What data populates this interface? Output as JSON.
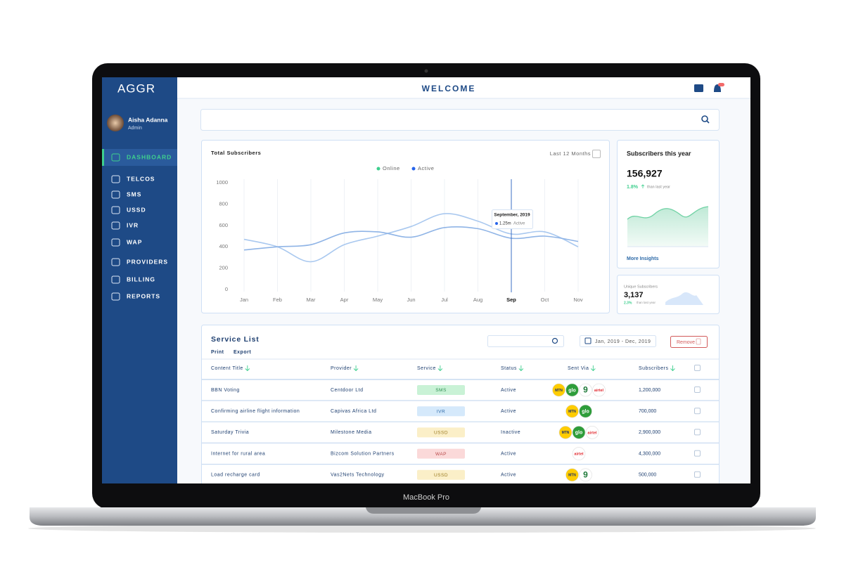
{
  "device_label": "MacBook Pro",
  "sidebar": {
    "brand": "AGGR",
    "user": {
      "name": "Aisha Adanna",
      "role": "Admin"
    },
    "menu": [
      {
        "label": "DASHBOARD",
        "active": true
      },
      {
        "label": "TELCOS"
      },
      {
        "label": "SMS"
      },
      {
        "label": "USSD"
      },
      {
        "label": "IVR"
      },
      {
        "label": "WAP"
      },
      {
        "label": "PROVIDERS"
      },
      {
        "label": "BILLING"
      },
      {
        "label": "REPORTS"
      }
    ]
  },
  "header": {
    "title": "WELCOME"
  },
  "chart": {
    "type": "line",
    "title": "Total Subscribers",
    "range_select": "Last 12 Months",
    "categories": [
      "Jan",
      "Feb",
      "Mar",
      "Apr",
      "May",
      "Jun",
      "Jul",
      "Aug",
      "Sep",
      "Oct",
      "Nov"
    ],
    "highlight_index": 8,
    "ylim": [
      0,
      1000
    ],
    "yticks": [
      0,
      200,
      400,
      600,
      800,
      1000
    ],
    "grid": true,
    "series": [
      {
        "name": "Online",
        "color": "#3ecf8e",
        "line_color": "#a9c8ef",
        "values": [
          470,
          400,
          260,
          420,
          500,
          590,
          710,
          640,
          520,
          540,
          400
        ]
      },
      {
        "name": "Active",
        "color": "#2563eb",
        "line_color": "#8fb4e6",
        "values": [
          370,
          400,
          420,
          530,
          540,
          490,
          580,
          570,
          480,
          500,
          450
        ]
      }
    ],
    "tooltip": {
      "title": "September, 2019",
      "value": "1.25m",
      "series": "Active"
    }
  },
  "stats": [
    {
      "title": "Subscribers this year",
      "value": "156,927",
      "change": "1.8%",
      "note": "than last year",
      "link": "More Insights"
    },
    {
      "title": "Unique Subscribers",
      "value": "3,137",
      "change": "2.3%",
      "note": "than last year"
    }
  ],
  "service_list": {
    "title": "Service List",
    "actions": [
      "Print",
      "Export"
    ],
    "date_range": "Jan, 2019 - Dec, 2019",
    "remove": "Remove",
    "columns": [
      "Content Title",
      "Provider",
      "Service",
      "Status",
      "Sent Via",
      "Subscribers"
    ],
    "service_colors": {
      "SMS": [
        "#c9f2d6",
        "#2f8f52"
      ],
      "IVR": [
        "#d5e9fb",
        "#2d6aa8"
      ],
      "USSD": [
        "#fbefc8",
        "#9a7a20"
      ],
      "WAP": [
        "#fbd9d9",
        "#b84a4a"
      ]
    },
    "rows": [
      {
        "title": "BBN Voting",
        "provider": "Centdoor Ltd",
        "service": "SMS",
        "status": "Active",
        "sent_via": [
          "MTN",
          "glo",
          "9",
          "airtel"
        ],
        "subscribers": "1,200,000"
      },
      {
        "title": "Confirming airline flight information",
        "provider": "Capivas Africa Ltd",
        "service": "IVR",
        "status": "Active",
        "sent_via": [
          "MTN",
          "glo"
        ],
        "subscribers": "700,000"
      },
      {
        "title": "Saturday Trivia",
        "provider": "Milestone Media",
        "service": "USSD",
        "status": "Inactive",
        "sent_via": [
          "MTN",
          "glo",
          "airtel"
        ],
        "subscribers": "2,900,000"
      },
      {
        "title": "Internet for rural area",
        "provider": "Bizcom Solution Partners",
        "service": "WAP",
        "status": "Active",
        "sent_via": [
          "airtel"
        ],
        "subscribers": "4,300,000"
      },
      {
        "title": "Load recharge card",
        "provider": "Vas2Nets Technology",
        "service": "USSD",
        "status": "Active",
        "sent_via": [
          "MTN",
          "9"
        ],
        "subscribers": "500,000"
      }
    ]
  }
}
